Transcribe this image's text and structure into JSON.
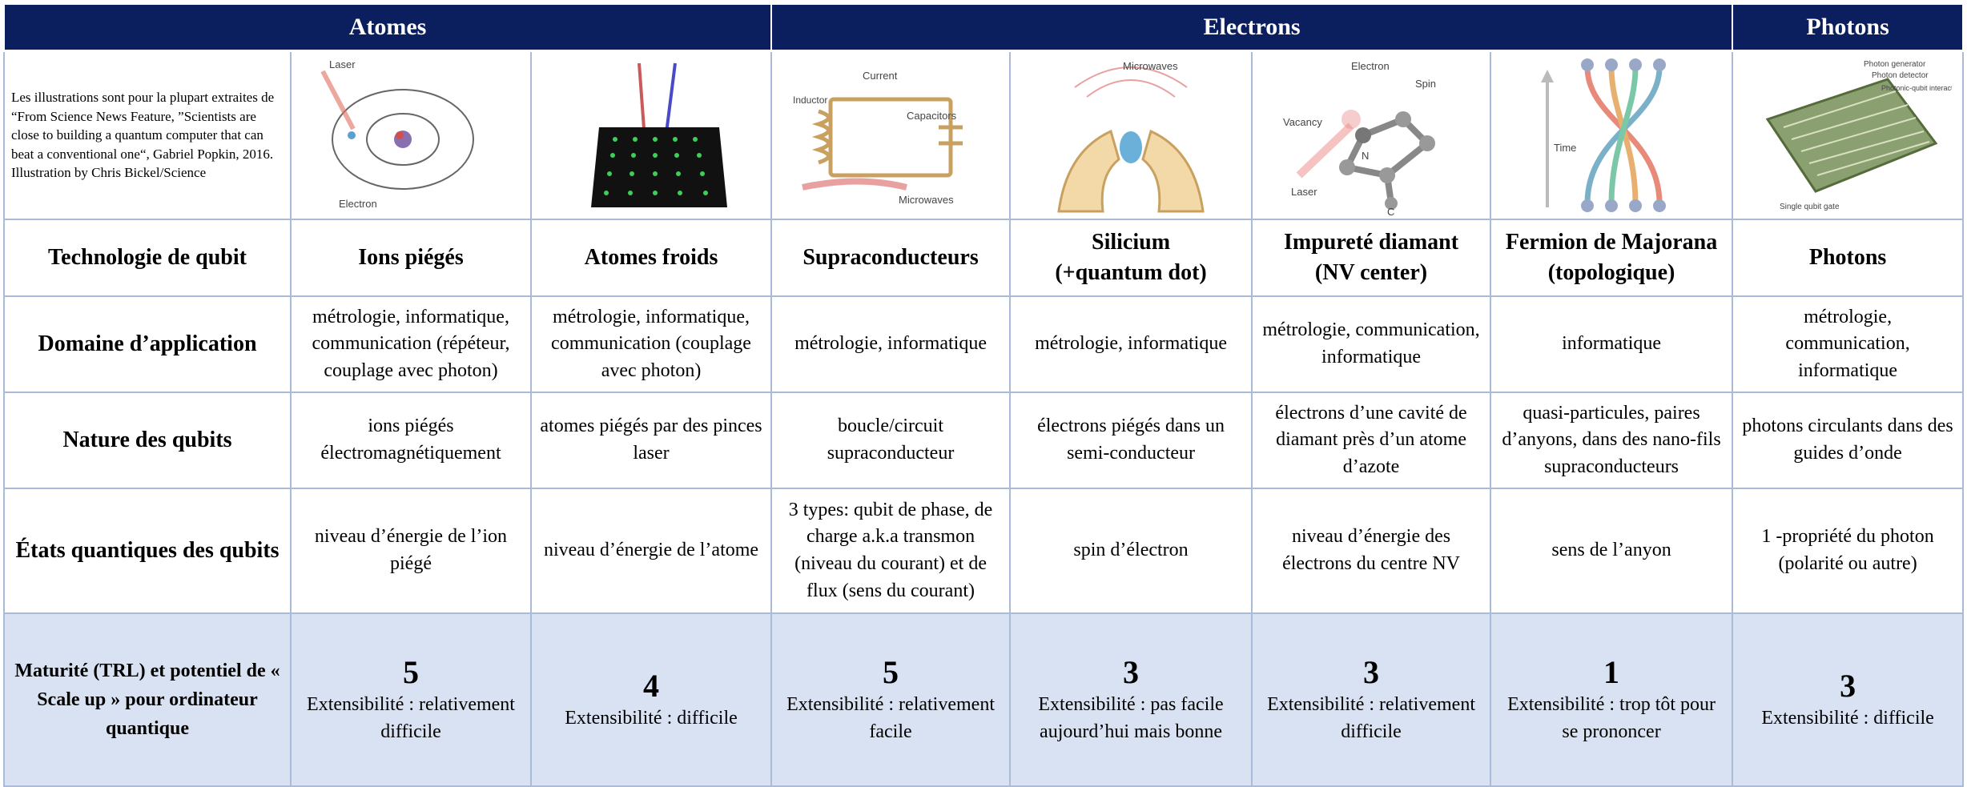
{
  "groups": [
    {
      "label": "Atomes"
    },
    {
      "label": "Electrons"
    },
    {
      "label": "Photons"
    }
  ],
  "credit": "Les illustrations sont pour la plupart extraites de “From Science News Feature, ”Scientists are close to building a quantum computer that can beat a conventional one“, Gabriel Popkin, 2016. Illustration by Chris Bickel/Science",
  "illustration_labels": {
    "ions": [
      "Laser",
      "Electron"
    ],
    "supra": [
      "Current",
      "Capacitors",
      "Inductor",
      "Microwaves"
    ],
    "silicium": [
      "Microwaves"
    ],
    "nv": [
      "Electron",
      "Spin",
      "Vacancy",
      "N",
      "Laser",
      "C"
    ],
    "majorana": [
      "Time"
    ],
    "photons": [
      "Photon generator",
      "Photon detector",
      "Photonic-qubit interaction",
      "Single qubit gate"
    ]
  },
  "rows": {
    "tech": {
      "head": "Technologie de qubit",
      "cells": [
        "Ions piégés",
        "Atomes froids",
        "Supraconducteurs",
        "Silicium\n(+quantum dot)",
        "Impureté diamant\n(NV center)",
        "Fermion de Majorana\n(topologique)",
        "Photons"
      ]
    },
    "domaine": {
      "head": "Domaine d’application",
      "cells": [
        "métrologie, informatique, communication (répéteur, couplage avec photon)",
        "métrologie, informatique, communication (couplage avec photon)",
        "métrologie, informatique",
        "métrologie, informatique",
        "métrologie, communication, informatique",
        "informatique",
        "métrologie, communication, informatique"
      ]
    },
    "nature": {
      "head": "Nature des qubits",
      "cells": [
        "ions piégés électromagnétiquement",
        "atomes piégés par des pinces laser",
        "boucle/circuit supraconducteur",
        "électrons piégés dans un semi-conducteur",
        "électrons d’une cavité de diamant près d’un atome d’azote",
        "quasi-particules, paires d’anyons, dans des nano-fils supraconducteurs",
        "photons circulants dans des guides d’onde"
      ]
    },
    "etats": {
      "head": "États quantiques des qubits",
      "cells": [
        "niveau d’énergie de l’ion piégé",
        "niveau d’énergie de l’atome",
        "3 types: qubit de phase, de charge a.k.a transmon (niveau du courant) et de flux (sens du courant)",
        "spin d’électron",
        "niveau d’énergie des électrons du centre NV",
        "sens de l’anyon",
        "1 -propriété du photon (polarité ou autre)"
      ]
    },
    "maturite": {
      "head": "Maturité (TRL) et potentiel de « Scale up » pour ordinateur quantique",
      "scores": [
        "5",
        "4",
        "5",
        "3",
        "3",
        "1",
        "3"
      ],
      "ext": [
        "Extensibilité : relativement difficile",
        "Extensibilité : difficile",
        "Extensibilité : relativement facile",
        "Extensibilité : pas facile aujourd’hui mais bonne",
        "Extensibilité : relativement difficile",
        "Extensibilité : trop tôt pour se prononcer",
        "Extensibilité : difficile"
      ]
    }
  },
  "colors": {
    "header_bg": "#0b1f5e",
    "maturity_bg": "#d9e2f2",
    "border": "#a9bbd9"
  }
}
